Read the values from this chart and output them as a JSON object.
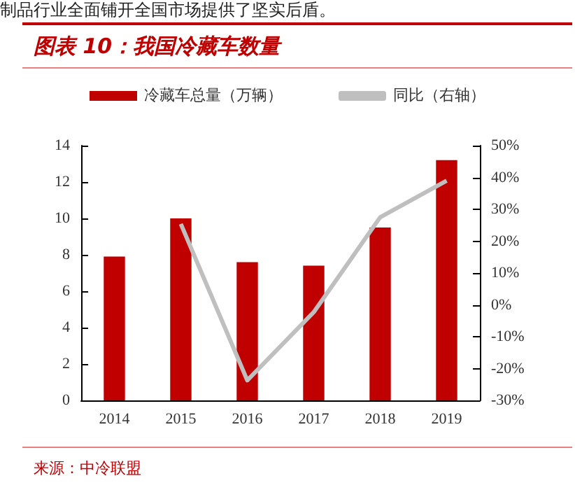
{
  "chart_data": {
    "type": "bar",
    "title": "图表 10：我国冷藏车数量",
    "categories": [
      "2014",
      "2015",
      "2016",
      "2017",
      "2018",
      "2019"
    ],
    "series": [
      {
        "name": "冷藏车总量（万辆）",
        "color": "#c00000",
        "values": [
          7.9,
          10.0,
          7.6,
          7.4,
          9.5,
          13.2
        ]
      },
      {
        "name": "同比（右轴）",
        "type": "line",
        "axis": "y2",
        "color": "#bfbfbf",
        "values": [
          null,
          25.4,
          -23.7,
          -2.3,
          27.5,
          39
        ]
      }
    ],
    "ylim": [
      0,
      14
    ],
    "yticks": [
      0,
      2,
      4,
      6,
      8,
      10,
      12,
      14
    ],
    "y2lim": [
      -30,
      50
    ],
    "y2ticks": [
      {
        "value": -30,
        "label": "-30%"
      },
      {
        "value": -20,
        "label": "-20%"
      },
      {
        "value": -10,
        "label": "-10%"
      },
      {
        "value": 0,
        "label": "0%"
      },
      {
        "value": 10,
        "label": "10%"
      },
      {
        "value": 20,
        "label": "20%"
      },
      {
        "value": 30,
        "label": "30%"
      },
      {
        "value": 40,
        "label": "40%"
      },
      {
        "value": 50,
        "label": "50%"
      }
    ],
    "grid": false,
    "legend": "top",
    "marker": "none",
    "annotations": [
      "制品行业全面铺开全国市场提供了坚实后盾。",
      "来源：中冷联盟"
    ]
  }
}
